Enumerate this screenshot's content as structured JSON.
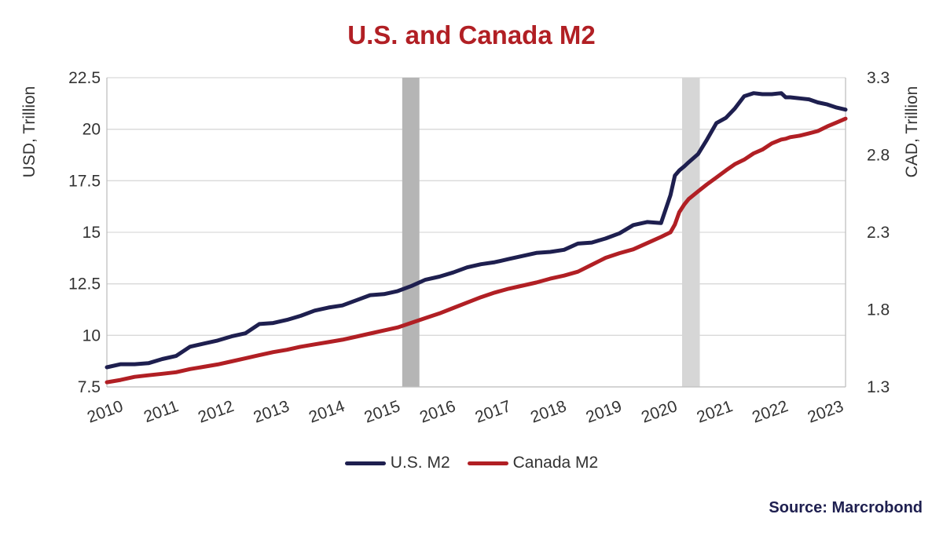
{
  "chart_data": {
    "type": "line",
    "title": "U.S. and Canada M2",
    "ylabel_left": "USD, Trillion",
    "ylabel_right": "CAD, Trillion",
    "y_left": {
      "lim": [
        7.5,
        22.5
      ],
      "ticks": [
        "7.5",
        "10",
        "12.5",
        "15",
        "17.5",
        "20",
        "22.5"
      ]
    },
    "y_right": {
      "lim": [
        1.3,
        3.3
      ],
      "ticks": [
        "1.3",
        "1.8",
        "2.3",
        "2.8",
        "3.3"
      ]
    },
    "x_ticks": [
      "2010",
      "2011",
      "2012",
      "2013",
      "2014",
      "2015",
      "2016",
      "2017",
      "2018",
      "2019",
      "2020",
      "2021",
      "2022",
      "2023"
    ],
    "xlim": [
      2010.0,
      2023.33
    ],
    "grid": true,
    "legend_position": "bottom",
    "shaded_periods": [
      {
        "start": 2015.33,
        "end": 2015.64,
        "color": "#b5b5b5"
      },
      {
        "start": 2020.38,
        "end": 2020.7,
        "color": "#d6d6d6"
      }
    ],
    "series": [
      {
        "name": "U.S. M2",
        "axis": "left",
        "color": "#1e1f4f",
        "x": [
          2010.0,
          2010.25,
          2010.5,
          2010.75,
          2011.0,
          2011.25,
          2011.5,
          2011.75,
          2012.0,
          2012.25,
          2012.5,
          2012.75,
          2013.0,
          2013.25,
          2013.5,
          2013.75,
          2014.0,
          2014.25,
          2014.5,
          2014.75,
          2015.0,
          2015.25,
          2015.5,
          2015.75,
          2016.0,
          2016.25,
          2016.5,
          2016.75,
          2017.0,
          2017.25,
          2017.5,
          2017.75,
          2018.0,
          2018.25,
          2018.5,
          2018.75,
          2019.0,
          2019.25,
          2019.5,
          2019.75,
          2020.0,
          2020.17,
          2020.25,
          2020.33,
          2020.42,
          2020.5,
          2020.67,
          2020.83,
          2021.0,
          2021.17,
          2021.33,
          2021.5,
          2021.67,
          2021.83,
          2022.0,
          2022.17,
          2022.25,
          2022.33,
          2022.5,
          2022.67,
          2022.83,
          2023.0,
          2023.17,
          2023.33
        ],
        "y": [
          8.45,
          8.6,
          8.6,
          8.65,
          8.85,
          9.0,
          9.45,
          9.6,
          9.75,
          9.95,
          10.1,
          10.55,
          10.6,
          10.75,
          10.95,
          11.2,
          11.35,
          11.45,
          11.7,
          11.95,
          12.0,
          12.15,
          12.4,
          12.7,
          12.85,
          13.05,
          13.3,
          13.45,
          13.55,
          13.7,
          13.85,
          14.0,
          14.05,
          14.15,
          14.45,
          14.5,
          14.7,
          14.95,
          15.35,
          15.5,
          15.45,
          16.8,
          17.75,
          18.0,
          18.2,
          18.4,
          18.8,
          19.5,
          20.3,
          20.55,
          21.0,
          21.6,
          21.75,
          21.7,
          21.7,
          21.75,
          21.55,
          21.55,
          21.5,
          21.45,
          21.3,
          21.2,
          21.05,
          20.95
        ]
      },
      {
        "name": "Canada M2",
        "axis": "right",
        "color": "#b11f24",
        "x": [
          2010.0,
          2010.25,
          2010.5,
          2010.75,
          2011.0,
          2011.25,
          2011.5,
          2011.75,
          2012.0,
          2012.25,
          2012.5,
          2012.75,
          2013.0,
          2013.25,
          2013.5,
          2013.75,
          2014.0,
          2014.25,
          2014.5,
          2014.75,
          2015.0,
          2015.25,
          2015.5,
          2015.75,
          2016.0,
          2016.25,
          2016.5,
          2016.75,
          2017.0,
          2017.25,
          2017.5,
          2017.75,
          2018.0,
          2018.25,
          2018.5,
          2018.75,
          2019.0,
          2019.25,
          2019.5,
          2019.75,
          2020.0,
          2020.17,
          2020.25,
          2020.33,
          2020.42,
          2020.5,
          2020.67,
          2020.83,
          2021.0,
          2021.17,
          2021.33,
          2021.5,
          2021.67,
          2021.83,
          2022.0,
          2022.17,
          2022.25,
          2022.33,
          2022.5,
          2022.67,
          2022.83,
          2023.0,
          2023.17,
          2023.33
        ],
        "y": [
          1.33,
          1.345,
          1.365,
          1.375,
          1.385,
          1.395,
          1.415,
          1.43,
          1.445,
          1.465,
          1.485,
          1.505,
          1.525,
          1.54,
          1.56,
          1.575,
          1.59,
          1.605,
          1.625,
          1.645,
          1.665,
          1.685,
          1.715,
          1.745,
          1.775,
          1.81,
          1.845,
          1.88,
          1.91,
          1.935,
          1.955,
          1.975,
          2.0,
          2.02,
          2.045,
          2.09,
          2.135,
          2.165,
          2.19,
          2.23,
          2.27,
          2.3,
          2.35,
          2.43,
          2.48,
          2.515,
          2.565,
          2.61,
          2.655,
          2.7,
          2.74,
          2.77,
          2.81,
          2.835,
          2.875,
          2.9,
          2.905,
          2.915,
          2.925,
          2.94,
          2.955,
          2.985,
          3.01,
          3.035
        ]
      }
    ]
  },
  "source": "Source: Marcrobond"
}
